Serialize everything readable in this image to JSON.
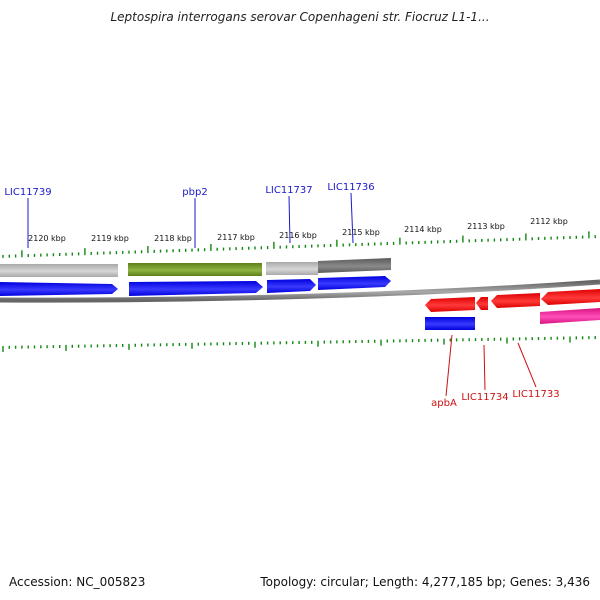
{
  "title": "Leptospira interrogans serovar Copenhageni str. Fiocruz L1-1...",
  "footer": {
    "accession": "Accession: NC_005823",
    "summary": "Topology: circular; Length: 4,277,185 bp; Genes: 3,436"
  },
  "colors": {
    "blue": "#0000ee",
    "red": "#ee0000",
    "magenta": "#e6179b",
    "green": "#6b8e23",
    "gray": "#b5b5b5",
    "darkgray": "#6a6a6a",
    "tick": "#118811",
    "label_blue": "#1a1acc",
    "label_red": "#cc1111"
  },
  "kbp_ticks": [
    "2120 kbp",
    "2119 kbp",
    "2118 kbp",
    "2117 kbp",
    "2116 kbp",
    "2115 kbp",
    "2114 kbp",
    "2113 kbp",
    "2112 kbp"
  ],
  "gene_labels_top": [
    "LIC11739",
    "pbp2",
    "LIC11737",
    "LIC11736"
  ],
  "gene_labels_bottom": [
    "apbA",
    "LIC11734",
    "LIC11733"
  ]
}
